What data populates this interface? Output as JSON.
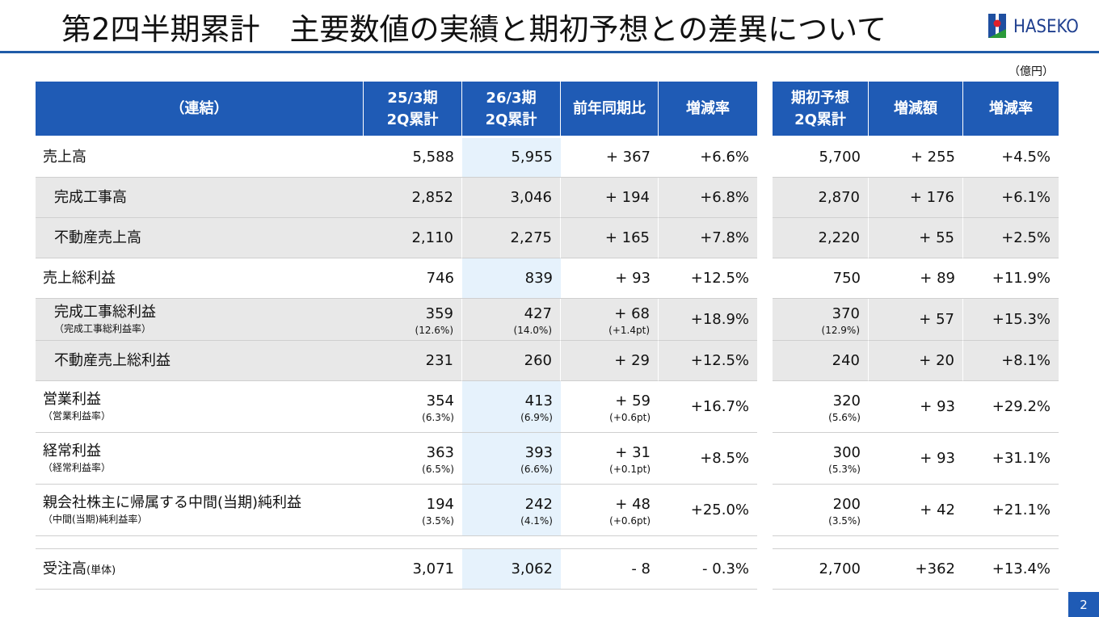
{
  "header": {
    "title": "第2四半期累計　主要数値の実績と期初予想との差異について",
    "logo": "HASEKO"
  },
  "unit": "（億円）",
  "table": {
    "left_columns": [
      [
        "（連結）"
      ],
      [
        "25/3期",
        "2Q累計"
      ],
      [
        "26/3期",
        "2Q累計"
      ],
      [
        "前年同期比"
      ],
      [
        "増減率"
      ]
    ],
    "right_columns": [
      [
        "期初予想",
        "2Q累計"
      ],
      [
        "増減額"
      ],
      [
        "増減率"
      ]
    ],
    "rows": [
      {
        "label": "売上高",
        "cells": [
          [
            "5,588"
          ],
          [
            "5,955"
          ],
          [
            "+ 367"
          ],
          [
            "+6.6%"
          ],
          [
            "5,700"
          ],
          [
            "+ 255"
          ],
          [
            "+4.5%"
          ]
        ]
      },
      {
        "label": "完成工事高",
        "sub": true,
        "cells": [
          [
            "2,852"
          ],
          [
            "3,046"
          ],
          [
            "+ 194"
          ],
          [
            "+6.8%"
          ],
          [
            "2,870"
          ],
          [
            "+ 176"
          ],
          [
            "+6.1%"
          ]
        ]
      },
      {
        "label": "不動産売上高",
        "sub": true,
        "cells": [
          [
            "2,110"
          ],
          [
            "2,275"
          ],
          [
            "+ 165"
          ],
          [
            "+7.8%"
          ],
          [
            "2,220"
          ],
          [
            "+ 55"
          ],
          [
            "+2.5%"
          ]
        ]
      },
      {
        "label": "売上総利益",
        "cells": [
          [
            "746"
          ],
          [
            "839"
          ],
          [
            "+ 93"
          ],
          [
            "+12.5%"
          ],
          [
            "750"
          ],
          [
            "+ 89"
          ],
          [
            "+11.9%"
          ]
        ]
      },
      {
        "label": "完成工事総利益",
        "note": "（完成工事総利益率）",
        "sub": true,
        "cells": [
          [
            "359",
            "(12.6%)"
          ],
          [
            "427",
            "(14.0%)"
          ],
          [
            "+ 68",
            "(+1.4pt)"
          ],
          [
            "+18.9%"
          ],
          [
            "370",
            "(12.9%)"
          ],
          [
            "+ 57"
          ],
          [
            "+15.3%"
          ]
        ]
      },
      {
        "label": "不動産売上総利益",
        "sub": true,
        "cells": [
          [
            "231"
          ],
          [
            "260"
          ],
          [
            "+ 29"
          ],
          [
            "+12.5%"
          ],
          [
            "240"
          ],
          [
            "+ 20"
          ],
          [
            "+8.1%"
          ]
        ]
      },
      {
        "label": "営業利益",
        "note": "（営業利益率）",
        "cells": [
          [
            "354",
            "(6.3%)"
          ],
          [
            "413",
            "(6.9%)"
          ],
          [
            "+ 59",
            "(+0.6pt)"
          ],
          [
            "+16.7%"
          ],
          [
            "320",
            "(5.6%)"
          ],
          [
            "+ 93"
          ],
          [
            "+29.2%"
          ]
        ]
      },
      {
        "label": "経常利益",
        "note": "（経常利益率）",
        "cells": [
          [
            "363",
            "(6.5%)"
          ],
          [
            "393",
            "(6.6%)"
          ],
          [
            "+ 31",
            "(+0.1pt)"
          ],
          [
            "+8.5%"
          ],
          [
            "300",
            "(5.3%)"
          ],
          [
            "+ 93"
          ],
          [
            "+31.1%"
          ]
        ]
      },
      {
        "label": "親会社株主に帰属する中間(当期)純利益",
        "note": "（中間(当期)純利益率）",
        "cells": [
          [
            "194",
            "(3.5%)"
          ],
          [
            "242",
            "(4.1%)"
          ],
          [
            "+ 48",
            "(+0.6pt)"
          ],
          [
            "+25.0%"
          ],
          [
            "200",
            "(3.5%)"
          ],
          [
            "+ 42"
          ],
          [
            "+21.1%"
          ]
        ]
      },
      {
        "label": "受注高",
        "suffix": "(単体)",
        "cells": [
          [
            "3,071"
          ],
          [
            "3,062"
          ],
          [
            "- 8"
          ],
          [
            "- 0.3%"
          ],
          [
            "2,700"
          ],
          [
            "+362"
          ],
          [
            "+13.4%"
          ]
        ]
      }
    ]
  },
  "page_number": "2"
}
